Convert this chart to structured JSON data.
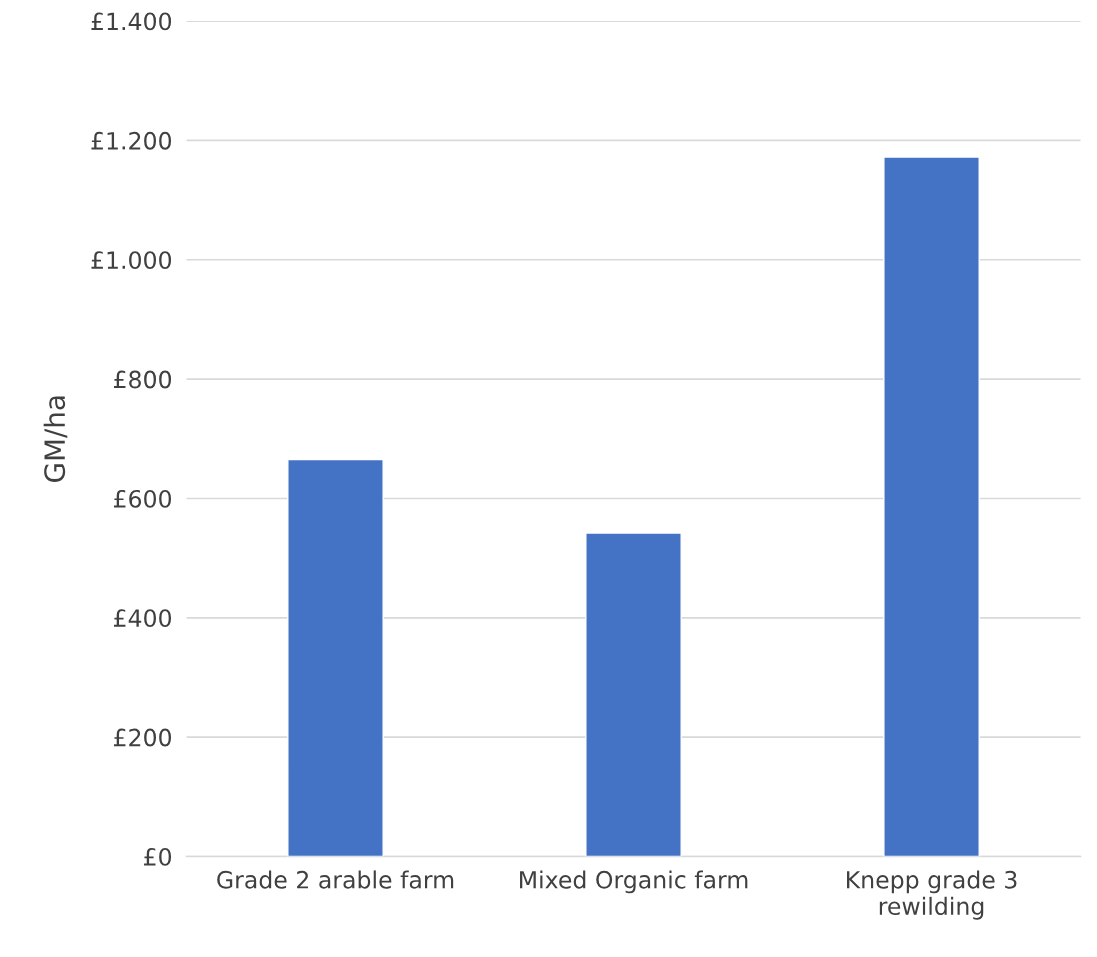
{
  "chart_data": {
    "type": "bar",
    "ylabel": "GM/ha",
    "categories": [
      "Grade 2 arable farm",
      "Mixed Organic farm",
      "Knepp grade 3\nrewilding"
    ],
    "values": [
      665,
      542,
      1172
    ],
    "color": "#4472c4",
    "ylim": [
      0,
      1400
    ],
    "yticks": [
      {
        "value": 0,
        "label": "£0"
      },
      {
        "value": 200,
        "label": "£200"
      },
      {
        "value": 400,
        "label": "£400"
      },
      {
        "value": 600,
        "label": "£600"
      },
      {
        "value": 800,
        "label": "£800"
      },
      {
        "value": 1000,
        "label": "£1.000"
      },
      {
        "value": 1200,
        "label": "£1.200"
      },
      {
        "value": 1400,
        "label": "£1.400"
      }
    ],
    "grid": "y",
    "legend": false
  }
}
